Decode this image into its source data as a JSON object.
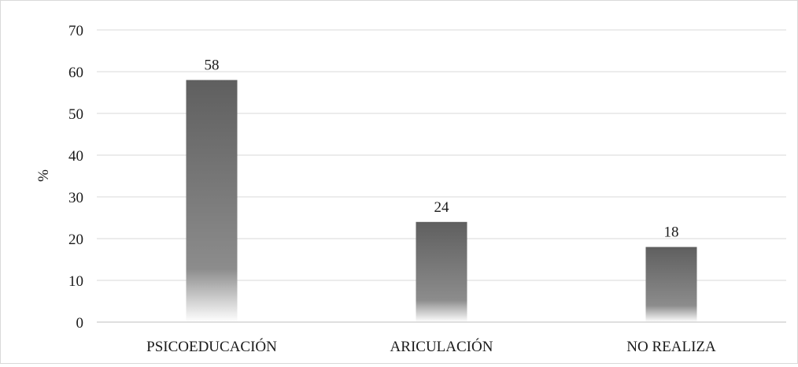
{
  "chart_data": {
    "type": "bar",
    "title": "",
    "xlabel": "",
    "ylabel": "%",
    "categories": [
      "PSICOEDUCACIÓN",
      "ARICULACIÓN",
      "NO REALIZA"
    ],
    "values": [
      58,
      24,
      18
    ],
    "data_labels": [
      "58",
      "24",
      "18"
    ],
    "ylim": [
      0,
      70
    ],
    "yticks": [
      0,
      10,
      20,
      30,
      40,
      50,
      60,
      70
    ],
    "grid": true,
    "legend": "none",
    "colors": {
      "bar_top": "#5f5f5f",
      "bar_mid": "#8c8c8c",
      "bar_bottom": "#ffffff",
      "gridline": "#d9d9d9",
      "axis": "#bfbfbf",
      "text": "#1a1a1a"
    }
  }
}
